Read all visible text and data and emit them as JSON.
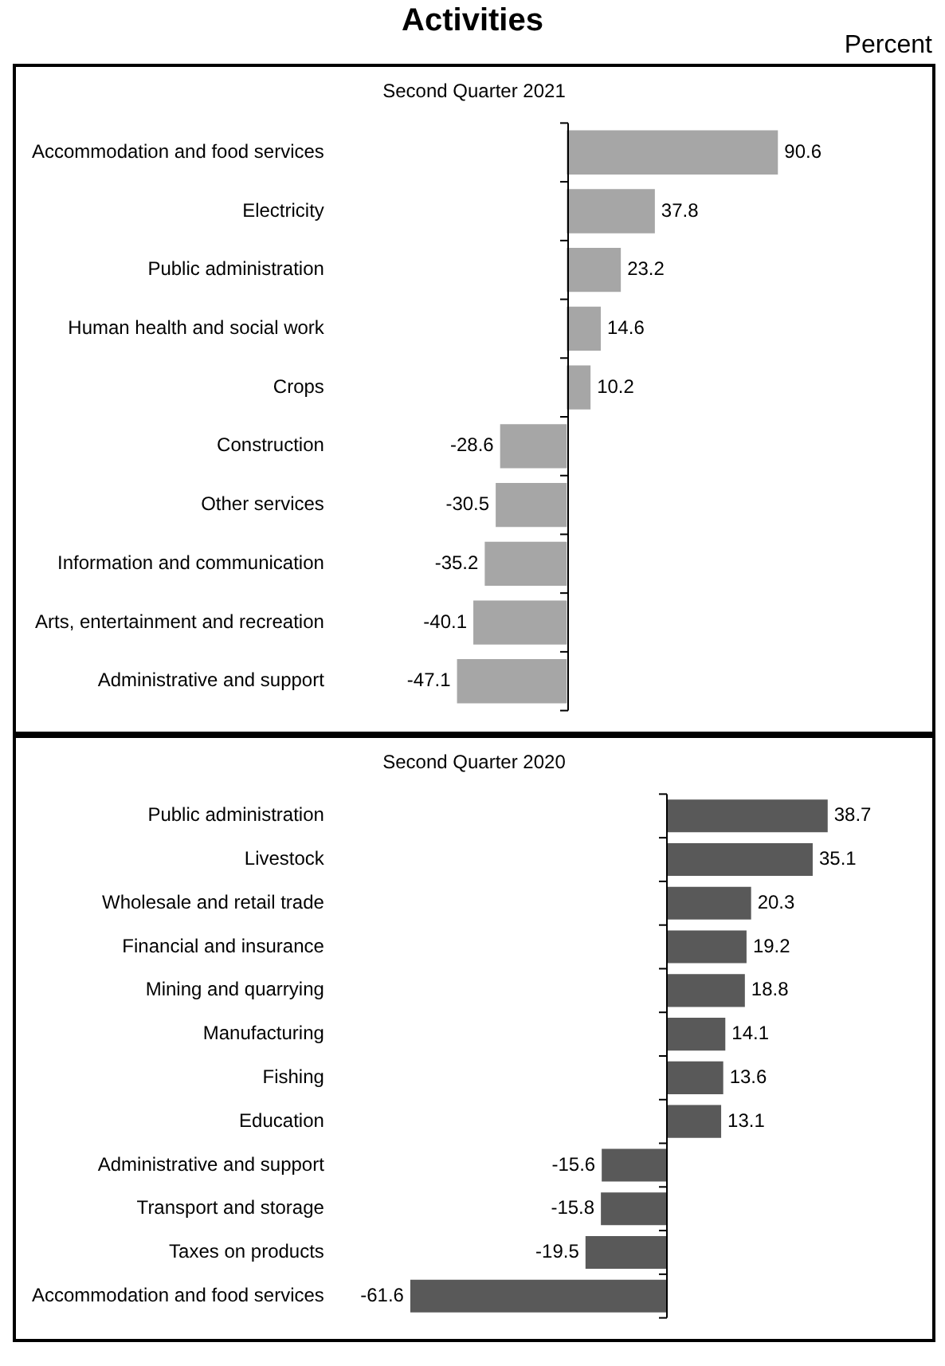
{
  "chart_data": [
    {
      "type": "bar",
      "orientation": "horizontal",
      "title": "Second Quarter 2021",
      "annotations": [
        "Activities",
        "Percent"
      ],
      "categories": [
        "Accommodation and food services",
        "Electricity",
        "Public administration",
        "Human health and social work",
        "Crops",
        "Construction",
        "Other services",
        "Information and communication",
        "Arts, entertainment and recreation",
        "Administrative and support"
      ],
      "values": [
        90.6,
        37.8,
        23.2,
        14.6,
        10.2,
        -28.6,
        -30.5,
        -35.2,
        -40.1,
        -47.1
      ],
      "color": "#a6a6a6",
      "data_labels": true,
      "tick_labels": "y",
      "legend": false
    },
    {
      "type": "bar",
      "orientation": "horizontal",
      "title": "Second Quarter 2020",
      "categories": [
        "Public administration",
        "Livestock",
        "Wholesale and retail trade",
        "Financial and insurance",
        "Mining and quarrying",
        "Manufacturing",
        "Fishing",
        "Education",
        "Administrative and support",
        "Transport and storage",
        "Taxes on products",
        "Accommodation and food services"
      ],
      "values": [
        38.7,
        35.1,
        20.3,
        19.2,
        18.8,
        14.1,
        13.6,
        13.1,
        -15.6,
        -15.8,
        -19.5,
        -61.6
      ],
      "color": "#595959",
      "data_labels": true,
      "tick_labels": "y",
      "legend": false
    }
  ]
}
